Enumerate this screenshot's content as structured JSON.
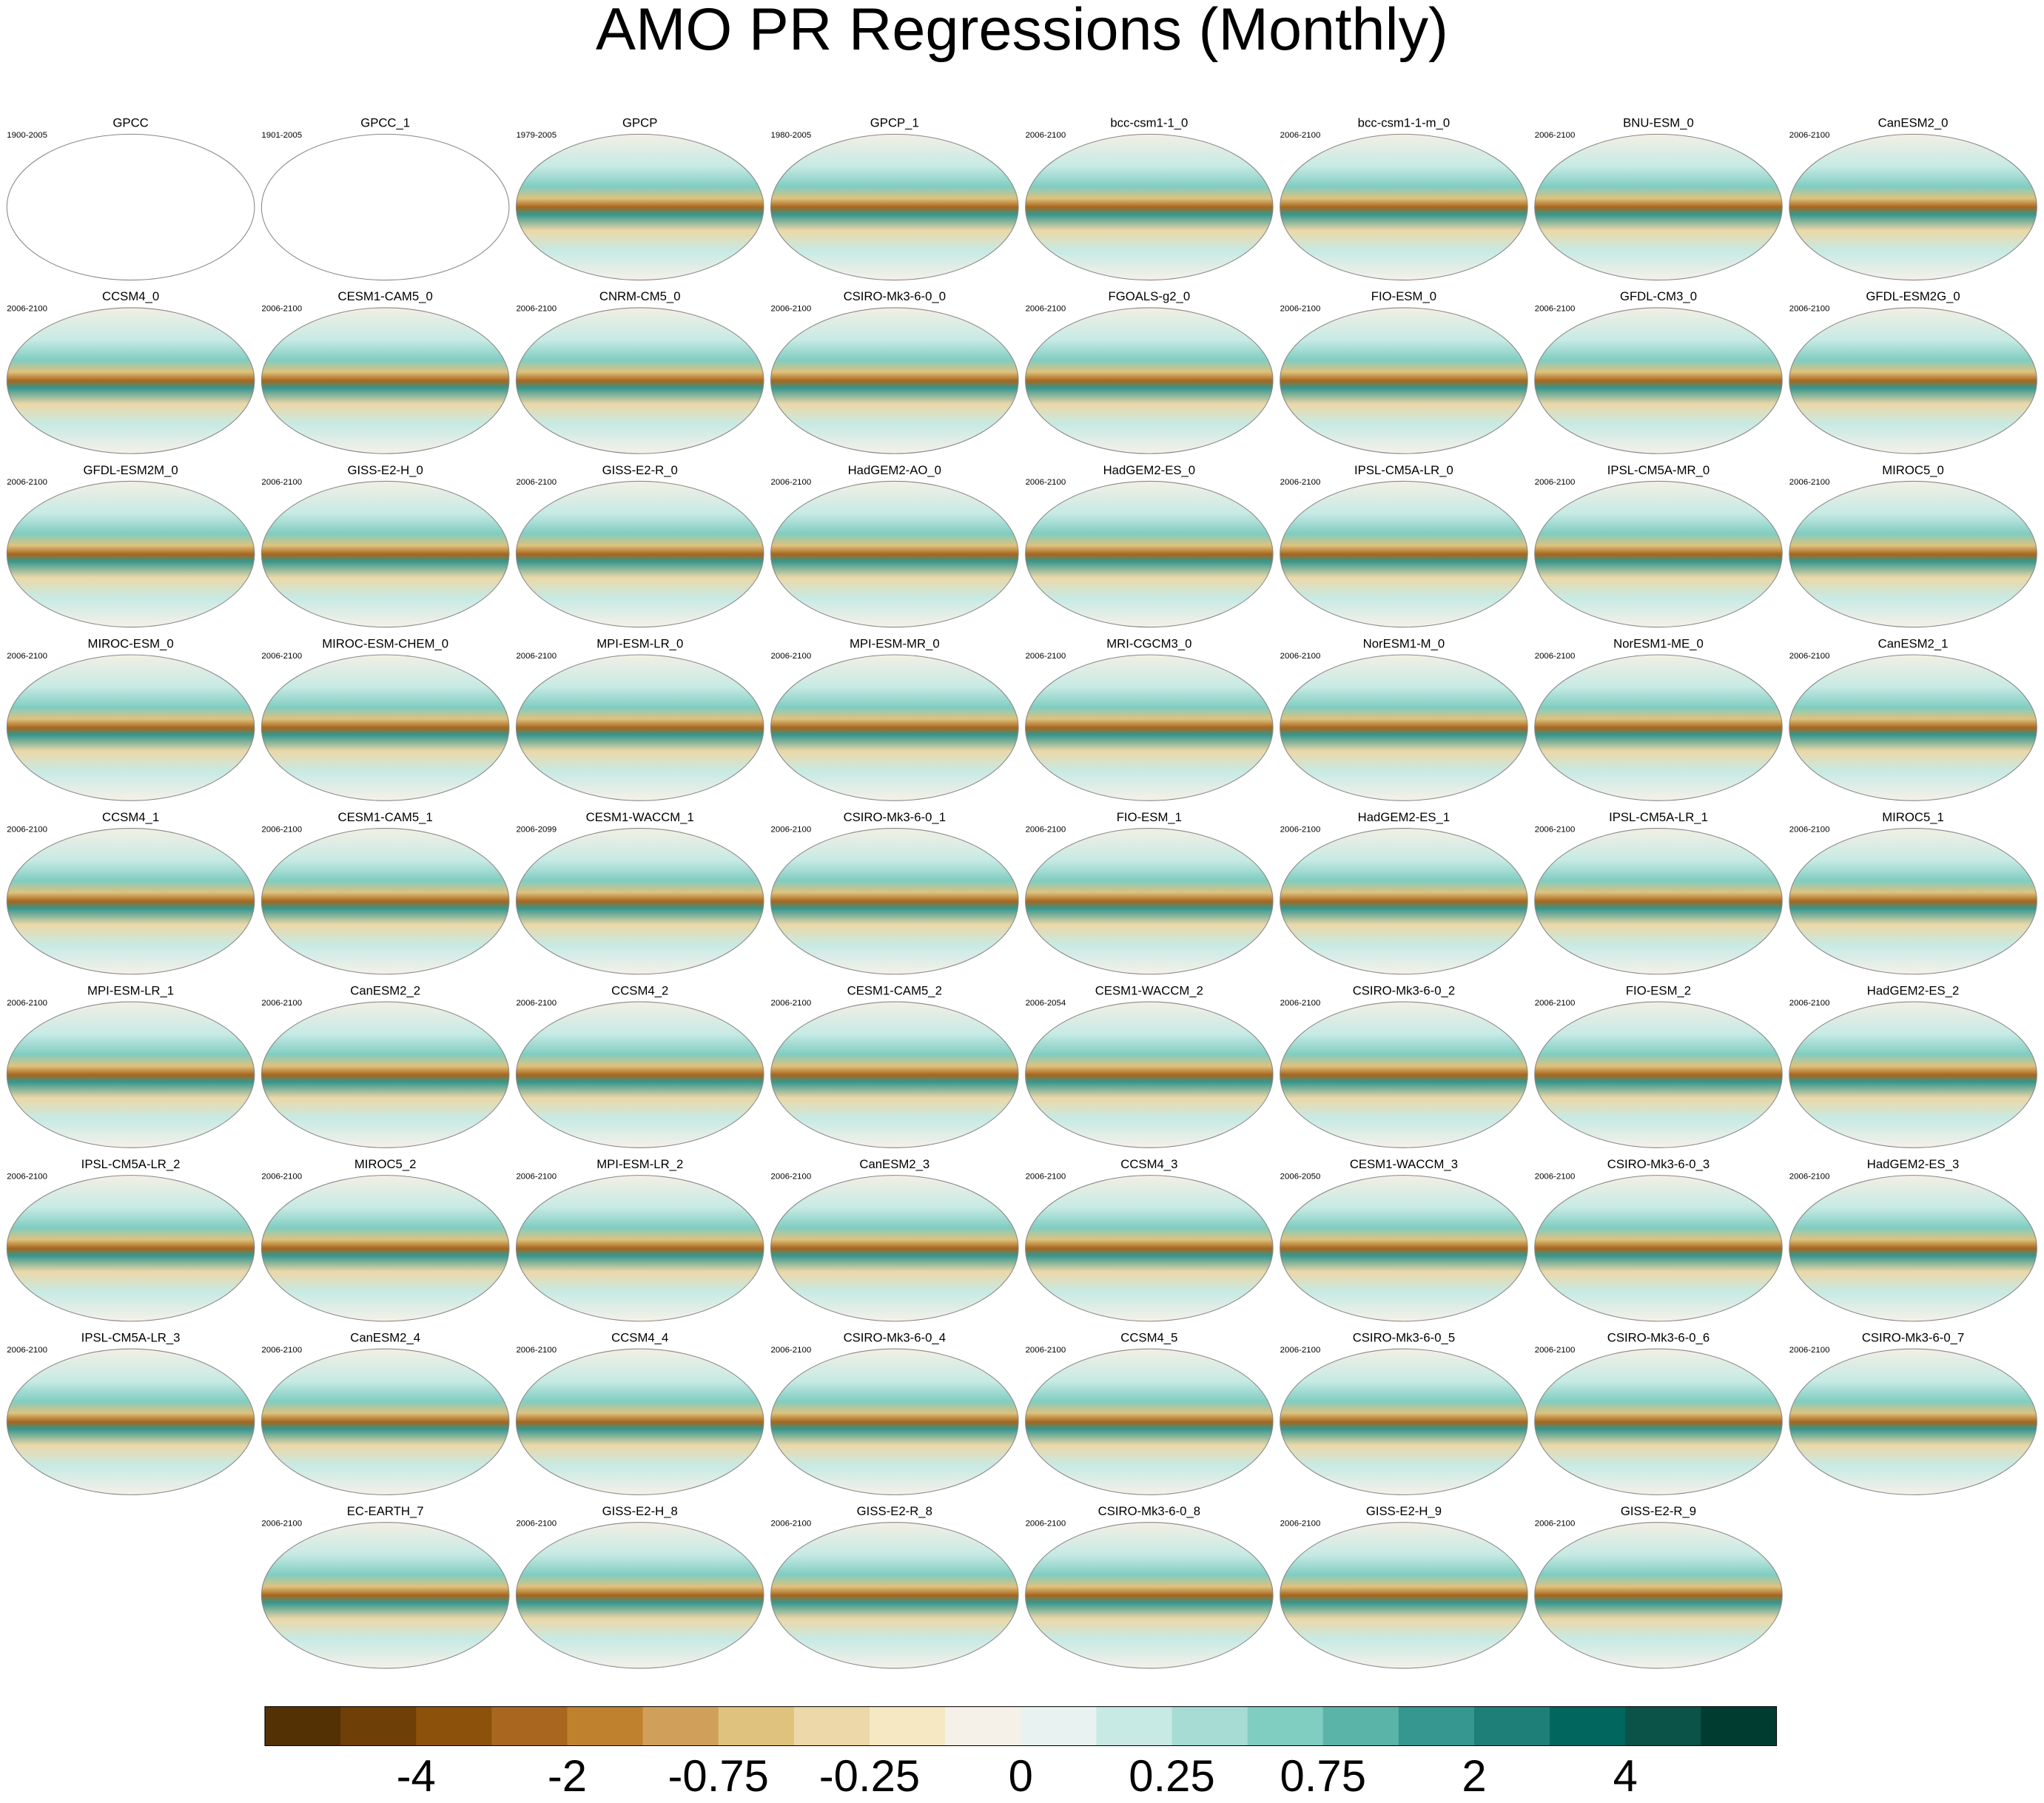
{
  "title": "AMO PR Regressions (Monthly)",
  "panels": [
    [
      {
        "title": "GPCC",
        "period": "1900-2005"
      },
      {
        "title": "GPCC_1",
        "period": "1901-2005"
      },
      {
        "title": "GPCP",
        "period": "1979-2005"
      },
      {
        "title": "GPCP_1",
        "period": "1980-2005"
      },
      {
        "title": "bcc-csm1-1_0",
        "period": "2006-2100"
      },
      {
        "title": "bcc-csm1-1-m_0",
        "period": "2006-2100"
      },
      {
        "title": "BNU-ESM_0",
        "period": "2006-2100"
      },
      {
        "title": "CanESM2_0",
        "period": "2006-2100"
      }
    ],
    [
      {
        "title": "CCSM4_0",
        "period": "2006-2100"
      },
      {
        "title": "CESM1-CAM5_0",
        "period": "2006-2100"
      },
      {
        "title": "CNRM-CM5_0",
        "period": "2006-2100"
      },
      {
        "title": "CSIRO-Mk3-6-0_0",
        "period": "2006-2100"
      },
      {
        "title": "FGOALS-g2_0",
        "period": "2006-2100"
      },
      {
        "title": "FIO-ESM_0",
        "period": "2006-2100"
      },
      {
        "title": "GFDL-CM3_0",
        "period": "2006-2100"
      },
      {
        "title": "GFDL-ESM2G_0",
        "period": "2006-2100"
      }
    ],
    [
      {
        "title": "GFDL-ESM2M_0",
        "period": "2006-2100"
      },
      {
        "title": "GISS-E2-H_0",
        "period": "2006-2100"
      },
      {
        "title": "GISS-E2-R_0",
        "period": "2006-2100"
      },
      {
        "title": "HadGEM2-AO_0",
        "period": "2006-2100"
      },
      {
        "title": "HadGEM2-ES_0",
        "period": "2006-2100"
      },
      {
        "title": "IPSL-CM5A-LR_0",
        "period": "2006-2100"
      },
      {
        "title": "IPSL-CM5A-MR_0",
        "period": "2006-2100"
      },
      {
        "title": "MIROC5_0",
        "period": "2006-2100"
      }
    ],
    [
      {
        "title": "MIROC-ESM_0",
        "period": "2006-2100"
      },
      {
        "title": "MIROC-ESM-CHEM_0",
        "period": "2006-2100"
      },
      {
        "title": "MPI-ESM-LR_0",
        "period": "2006-2100"
      },
      {
        "title": "MPI-ESM-MR_0",
        "period": "2006-2100"
      },
      {
        "title": "MRI-CGCM3_0",
        "period": "2006-2100"
      },
      {
        "title": "NorESM1-M_0",
        "period": "2006-2100"
      },
      {
        "title": "NorESM1-ME_0",
        "period": "2006-2100"
      },
      {
        "title": "CanESM2_1",
        "period": "2006-2100"
      }
    ],
    [
      {
        "title": "CCSM4_1",
        "period": "2006-2100"
      },
      {
        "title": "CESM1-CAM5_1",
        "period": "2006-2100"
      },
      {
        "title": "CESM1-WACCM_1",
        "period": "2006-2099"
      },
      {
        "title": "CSIRO-Mk3-6-0_1",
        "period": "2006-2100"
      },
      {
        "title": "FIO-ESM_1",
        "period": "2006-2100"
      },
      {
        "title": "HadGEM2-ES_1",
        "period": "2006-2100"
      },
      {
        "title": "IPSL-CM5A-LR_1",
        "period": "2006-2100"
      },
      {
        "title": "MIROC5_1",
        "period": "2006-2100"
      }
    ],
    [
      {
        "title": "MPI-ESM-LR_1",
        "period": "2006-2100"
      },
      {
        "title": "CanESM2_2",
        "period": "2006-2100"
      },
      {
        "title": "CCSM4_2",
        "period": "2006-2100"
      },
      {
        "title": "CESM1-CAM5_2",
        "period": "2006-2100"
      },
      {
        "title": "CESM1-WACCM_2",
        "period": "2006-2054"
      },
      {
        "title": "CSIRO-Mk3-6-0_2",
        "period": "2006-2100"
      },
      {
        "title": "FIO-ESM_2",
        "period": "2006-2100"
      },
      {
        "title": "HadGEM2-ES_2",
        "period": "2006-2100"
      }
    ],
    [
      {
        "title": "IPSL-CM5A-LR_2",
        "period": "2006-2100"
      },
      {
        "title": "MIROC5_2",
        "period": "2006-2100"
      },
      {
        "title": "MPI-ESM-LR_2",
        "period": "2006-2100"
      },
      {
        "title": "CanESM2_3",
        "period": "2006-2100"
      },
      {
        "title": "CCSM4_3",
        "period": "2006-2100"
      },
      {
        "title": "CESM1-WACCM_3",
        "period": "2006-2050"
      },
      {
        "title": "CSIRO-Mk3-6-0_3",
        "period": "2006-2100"
      },
      {
        "title": "HadGEM2-ES_3",
        "period": "2006-2100"
      }
    ],
    [
      {
        "title": "IPSL-CM5A-LR_3",
        "period": "2006-2100"
      },
      {
        "title": "CanESM2_4",
        "period": "2006-2100"
      },
      {
        "title": "CCSM4_4",
        "period": "2006-2100"
      },
      {
        "title": "CSIRO-Mk3-6-0_4",
        "period": "2006-2100"
      },
      {
        "title": "CCSM4_5",
        "period": "2006-2100"
      },
      {
        "title": "CSIRO-Mk3-6-0_5",
        "period": "2006-2100"
      },
      {
        "title": "CSIRO-Mk3-6-0_6",
        "period": "2006-2100"
      },
      {
        "title": "CSIRO-Mk3-6-0_7",
        "period": "2006-2100"
      }
    ],
    [
      {
        "title": "EC-EARTH_7",
        "period": "2006-2100"
      },
      {
        "title": "GISS-E2-H_8",
        "period": "2006-2100"
      },
      {
        "title": "GISS-E2-R_8",
        "period": "2006-2100"
      },
      {
        "title": "CSIRO-Mk3-6-0_8",
        "period": "2006-2100"
      },
      {
        "title": "GISS-E2-H_9",
        "period": "2006-2100"
      },
      {
        "title": "GISS-E2-R_9",
        "period": "2006-2100"
      }
    ]
  ],
  "colorbar": {
    "colors": [
      "#543005",
      "#6f3f08",
      "#8c510a",
      "#a8661e",
      "#bf812d",
      "#d0a05a",
      "#dfc27d",
      "#ecd8a8",
      "#f6e8c3",
      "#f5f1e8",
      "#e8f3f1",
      "#c7eae5",
      "#a6dcd3",
      "#80cdc1",
      "#5ab4a8",
      "#35978f",
      "#1d7f77",
      "#01665e",
      "#0b5248",
      "#003c30"
    ],
    "labels": [
      -4,
      -2,
      -0.75,
      -0.25,
      0,
      0.25,
      0.75,
      2,
      4
    ]
  }
}
